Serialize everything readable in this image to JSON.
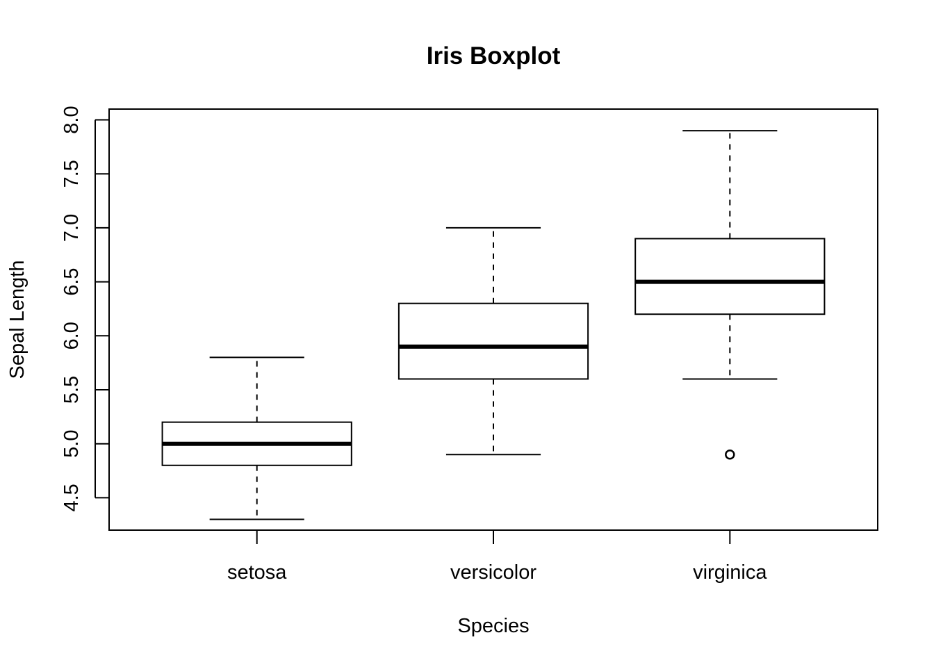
{
  "chart_data": {
    "type": "boxplot",
    "title": "Iris Boxplot",
    "xlabel": "Species",
    "ylabel": "Sepal Length",
    "categories": [
      "setosa",
      "versicolor",
      "virginica"
    ],
    "ylim": [
      4.2,
      8.1
    ],
    "yticks": [
      4.5,
      5.0,
      5.5,
      6.0,
      6.5,
      7.0,
      7.5,
      8.0
    ],
    "ytick_labels": [
      "4.5",
      "5.0",
      "5.5",
      "6.0",
      "6.5",
      "7.0",
      "7.5",
      "8.0"
    ],
    "grid": false,
    "boxes": [
      {
        "category": "setosa",
        "whisker_low": 4.3,
        "q1": 4.8,
        "median": 5.0,
        "q3": 5.2,
        "whisker_high": 5.8,
        "outliers": []
      },
      {
        "category": "versicolor",
        "whisker_low": 4.9,
        "q1": 5.6,
        "median": 5.9,
        "q3": 6.3,
        "whisker_high": 7.0,
        "outliers": []
      },
      {
        "category": "virginica",
        "whisker_low": 5.6,
        "q1": 6.2,
        "median": 6.5,
        "q3": 6.9,
        "whisker_high": 7.9,
        "outliers": [
          4.9
        ]
      }
    ]
  }
}
